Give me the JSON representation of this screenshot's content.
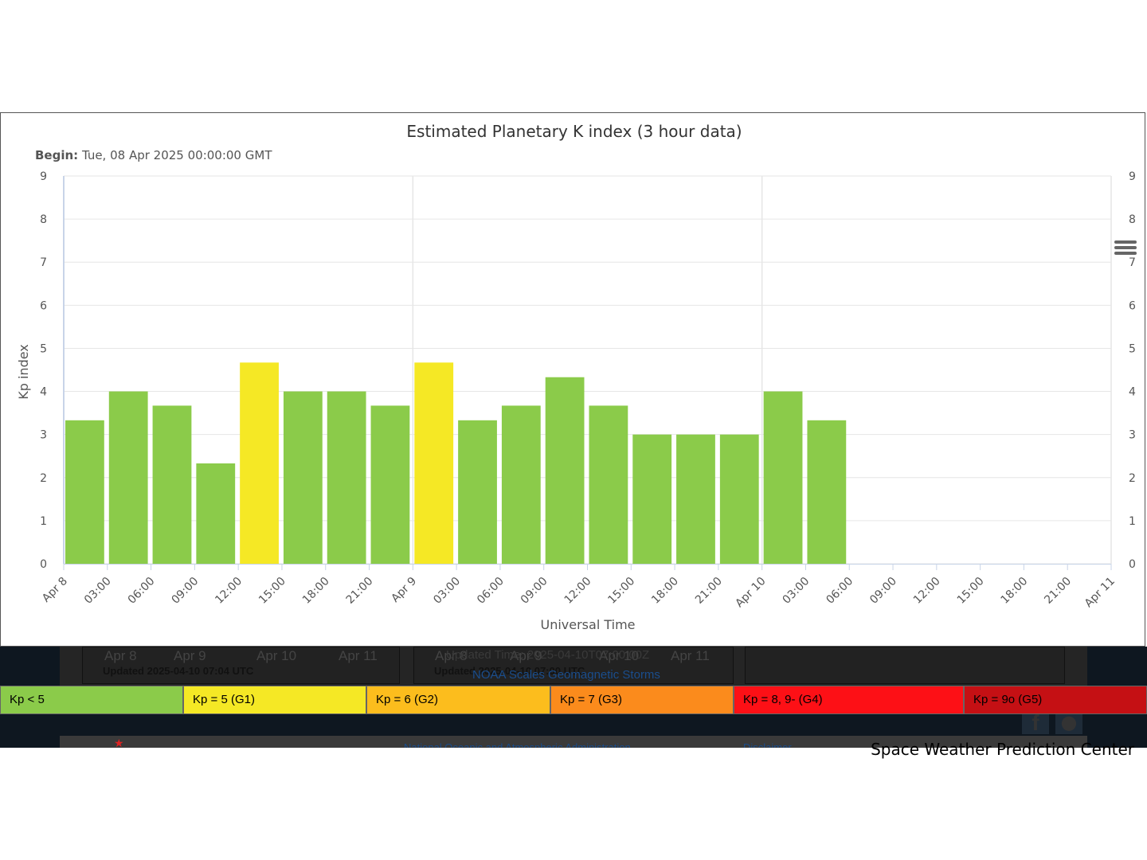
{
  "chart": {
    "title": "Estimated Planetary K index (3 hour data)",
    "begin_label": "Begin:",
    "begin_value": " Tue, 08 Apr 2025 00:00:00 GMT",
    "credit": "Space Weather Prediction Center",
    "menu_icon": "hamburger-menu-icon"
  },
  "chart_data": {
    "type": "bar",
    "xlabel": "Universal Time",
    "ylabel": "Kp index",
    "ylim": [
      0,
      9
    ],
    "y_ticks": [
      "0",
      "1",
      "2",
      "3",
      "4",
      "5",
      "6",
      "7",
      "8",
      "9"
    ],
    "x_ticks": [
      "Apr 8",
      "03:00",
      "06:00",
      "09:00",
      "12:00",
      "15:00",
      "18:00",
      "21:00",
      "Apr 9",
      "03:00",
      "06:00",
      "09:00",
      "12:00",
      "15:00",
      "18:00",
      "21:00",
      "Apr 10",
      "03:00",
      "06:00",
      "09:00",
      "12:00",
      "15:00",
      "18:00",
      "21:00",
      "Apr 11"
    ],
    "categories": [
      "2025-04-08 00:00",
      "2025-04-08 03:00",
      "2025-04-08 06:00",
      "2025-04-08 09:00",
      "2025-04-08 12:00",
      "2025-04-08 15:00",
      "2025-04-08 18:00",
      "2025-04-08 21:00",
      "2025-04-09 00:00",
      "2025-04-09 03:00",
      "2025-04-09 06:00",
      "2025-04-09 09:00",
      "2025-04-09 12:00",
      "2025-04-09 15:00",
      "2025-04-09 18:00",
      "2025-04-09 21:00",
      "2025-04-10 00:00",
      "2025-04-10 03:00"
    ],
    "values": [
      3.33,
      4.0,
      3.67,
      2.33,
      4.67,
      4.0,
      4.0,
      3.67,
      4.67,
      3.33,
      3.67,
      4.33,
      3.67,
      3.0,
      3.0,
      3.0,
      4.0,
      3.33
    ],
    "bar_colors": [
      "#8bcb4a",
      "#8bcb4a",
      "#8bcb4a",
      "#8bcb4a",
      "#f5e825",
      "#8bcb4a",
      "#8bcb4a",
      "#8bcb4a",
      "#f5e825",
      "#8bcb4a",
      "#8bcb4a",
      "#8bcb4a",
      "#8bcb4a",
      "#8bcb4a",
      "#8bcb4a",
      "#8bcb4a",
      "#8bcb4a",
      "#8bcb4a"
    ],
    "grid": true,
    "right_axis_mirrored": true
  },
  "legend": [
    {
      "label": "Kp < 5",
      "color": "#8bcb4a"
    },
    {
      "label": "Kp = 5 (G1)",
      "color": "#f5e825"
    },
    {
      "label": "Kp = 6 (G2)",
      "color": "#fcbd1d"
    },
    {
      "label": "Kp = 7 (G3)",
      "color": "#fb8b1c"
    },
    {
      "label": "Kp = 8, 9- (G4)",
      "color": "#fd1016"
    },
    {
      "label": "Kp = 9o (G5)",
      "color": "#c51014"
    }
  ],
  "background_page": {
    "left_ticks": [
      "Apr 8",
      "Apr 9",
      "Apr 10",
      "Apr 11"
    ],
    "left_updated": "Updated 2025-04-10 07:04 UTC",
    "mid_ticks": [
      "Apr 8",
      "Apr 9",
      "Apr 10",
      "Apr 11"
    ],
    "mid_updated": "Updated 2025-04-10 07:00 UTC",
    "mid_overlap": "Updated Time: 2025-04-10T07:00:00Z",
    "noaa_scales_link": "NOAA Scales Geomagnetic Storms",
    "footer_noaa": "National Oceanic and Atmospheric Administration",
    "footer_disclaimer": "Disclaimer"
  }
}
